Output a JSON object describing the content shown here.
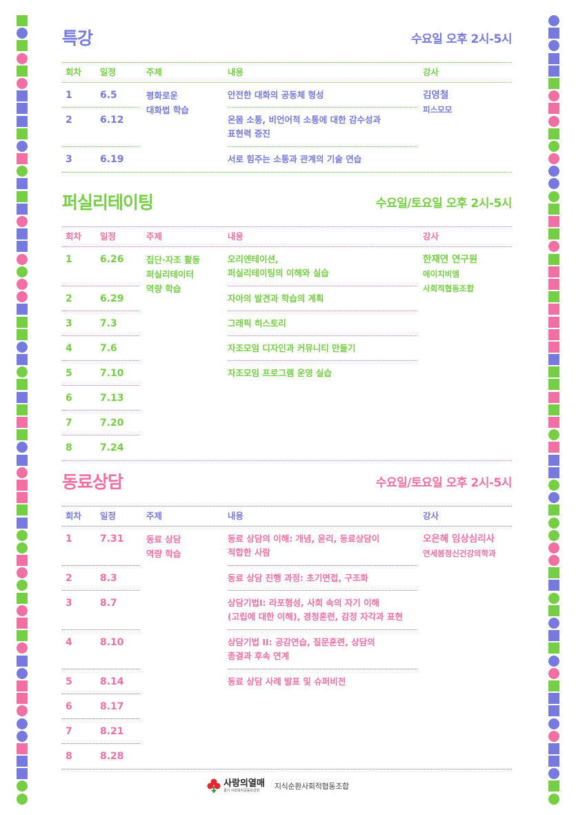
{
  "colors": {
    "blue": "#7679de",
    "green": "#74d042",
    "pink": "#f26fa3"
  },
  "headers": {
    "no": "회차",
    "date": "일정",
    "topic": "주제",
    "content": "내용",
    "instructor": "강사"
  },
  "sections": [
    {
      "title": "특강",
      "schedule": "수요일 오후 2시-5시",
      "main_color": "blue",
      "accent_color": "green",
      "topic": [
        "평화로운",
        "대화법 학습"
      ],
      "instructor": [
        "김영철",
        "피스모모"
      ],
      "rows": [
        {
          "no": "1",
          "date": "6.5",
          "content": [
            "안전한 대화의 공동체 형성"
          ]
        },
        {
          "no": "2",
          "date": "6.12",
          "content": [
            "온몸 소통, 비언어적 소통에 대한 감수성과",
            "표현력 증진"
          ]
        },
        {
          "no": "3",
          "date": "6.19",
          "content": [
            "서로 힘주는 소통과 관계의 기술 연습"
          ]
        }
      ]
    },
    {
      "title": "퍼실리테이팅",
      "schedule": "수요일/토요일 오후 2시-5시",
      "main_color": "green",
      "accent_color": "pink",
      "topic": [
        "집단·자조 활동",
        "퍼실리테이터",
        "역량 학습"
      ],
      "instructor": [
        "한재연 연구원",
        "에이치비엠",
        "사회적협동조합"
      ],
      "rows": [
        {
          "no": "1",
          "date": "6.26",
          "content": [
            "오리엔테이션,",
            "퍼실리테이팅의 이해와 실습"
          ]
        },
        {
          "no": "2",
          "date": "6.29",
          "content": [
            "자아의 발견과 학습의 계획"
          ]
        },
        {
          "no": "3",
          "date": "7.3",
          "content": [
            "그래픽 히스토리"
          ]
        },
        {
          "no": "4",
          "date": "7.6",
          "content": [
            "자조모임 디자인과 커뮤니티 만들기"
          ]
        },
        {
          "no": "5",
          "date": "7.10",
          "content": [
            "자조모임 프로그램 운영 실습"
          ]
        },
        {
          "no": "6",
          "date": "7.13",
          "content": []
        },
        {
          "no": "7",
          "date": "7.20",
          "content": []
        },
        {
          "no": "8",
          "date": "7.24",
          "content": []
        }
      ]
    },
    {
      "title": "동료상담",
      "schedule": "수요일/토요일 오후 2시-5시",
      "main_color": "pink",
      "accent_color": "blue",
      "topic": [
        "동료 상담",
        "역량 학습"
      ],
      "instructor": [
        "오은혜 임상심리사",
        "연세봄정신건강의학과"
      ],
      "rows": [
        {
          "no": "1",
          "date": "7.31",
          "content": [
            "동료 상담의 이해: 개념, 윤리, 동료상담이",
            "적합한 사람"
          ]
        },
        {
          "no": "2",
          "date": "8.3",
          "content": [
            "동료 상담 진행 과정: 초기면접, 구조화"
          ]
        },
        {
          "no": "3",
          "date": "8.7",
          "content": [
            "상담기법I: 라포형성, 사회 속의 자기 이해",
            "(고립에 대한 이해), 경청훈련, 감정 자각과 표현"
          ]
        },
        {
          "no": "4",
          "date": "8.10",
          "content": [
            "상담기법 II: 공감연습, 질문훈련, 상담의",
            "종결과 후속 연계"
          ]
        },
        {
          "no": "5",
          "date": "8.14",
          "content": [
            "동료 상담 사례 발표 및 슈퍼비전"
          ]
        },
        {
          "no": "6",
          "date": "8.17",
          "content": []
        },
        {
          "no": "7",
          "date": "8.21",
          "content": []
        },
        {
          "no": "8",
          "date": "8.28",
          "content": []
        }
      ]
    }
  ],
  "footer": {
    "logo1": "사랑의열매",
    "logo1_sub": "경기 사회복지공동모금회",
    "logo2": "지식순환사회적협동조합"
  }
}
